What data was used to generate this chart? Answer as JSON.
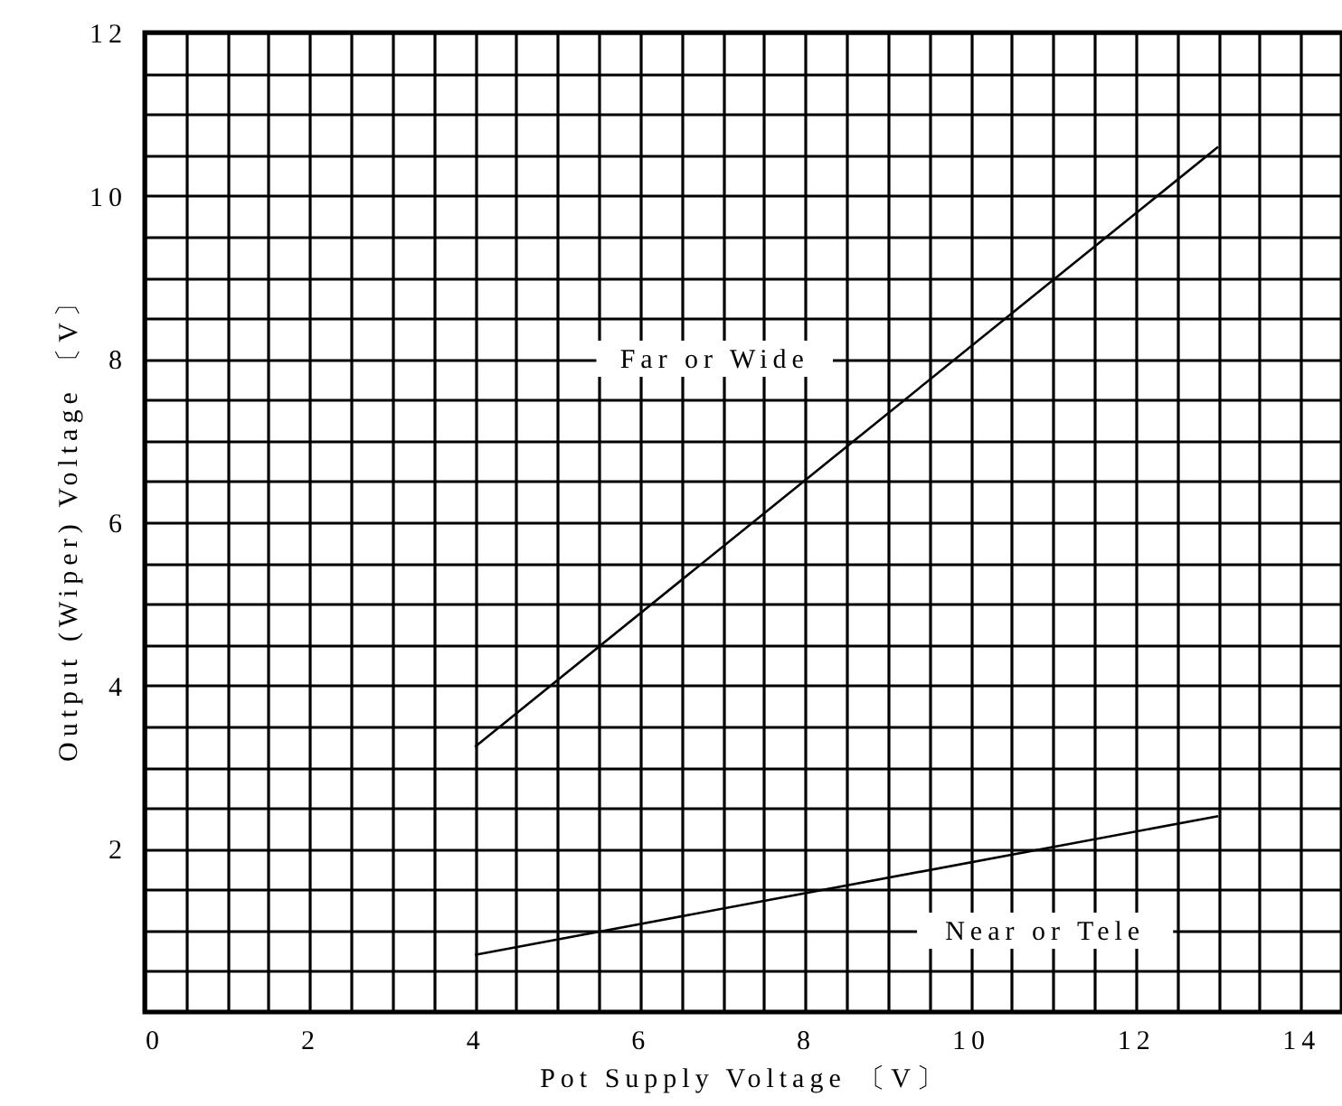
{
  "chart_data": {
    "type": "line",
    "xlabel": "Pot Supply Voltage 〔V〕",
    "ylabel": "Output (Wiper) Voltage 〔V〕",
    "x": [
      4,
      13
    ],
    "series": [
      {
        "color": "#000000",
        "values": [
          3.25,
          10.6
        ]
      },
      {
        "color": "#000000",
        "values": [
          0.7,
          2.4
        ]
      }
    ],
    "annotations": [
      "Far or Wide",
      "Near or Tele"
    ],
    "xlim": [
      0,
      14.5
    ],
    "ylim": [
      0,
      12
    ],
    "xticks": [
      0,
      {
        "value": 0.5,
        "label": null
      },
      {
        "value": 1,
        "label": null
      },
      {
        "value": 1.5,
        "label": null
      },
      2,
      {
        "value": 2.5,
        "label": null
      },
      {
        "value": 3,
        "label": null
      },
      {
        "value": 3.5,
        "label": null
      },
      4,
      {
        "value": 4.5,
        "label": null
      },
      {
        "value": 5,
        "label": null
      },
      {
        "value": 5.5,
        "label": null
      },
      6,
      {
        "value": 6.5,
        "label": null
      },
      {
        "value": 7,
        "label": null
      },
      {
        "value": 7.5,
        "label": null
      },
      8,
      {
        "value": 8.5,
        "label": null
      },
      {
        "value": 9,
        "label": null
      },
      {
        "value": 9.5,
        "label": null
      },
      10,
      {
        "value": 10.5,
        "label": null
      },
      {
        "value": 11,
        "label": null
      },
      {
        "value": 11.5,
        "label": null
      },
      12,
      {
        "value": 12.5,
        "label": null
      },
      {
        "value": 13,
        "label": null
      },
      {
        "value": 13.5,
        "label": null
      },
      14
    ],
    "yticks": [
      {
        "value": 0.5,
        "label": null
      },
      {
        "value": 1,
        "label": null
      },
      {
        "value": 1.5,
        "label": null
      },
      2,
      {
        "value": 2.5,
        "label": null
      },
      {
        "value": 3,
        "label": null
      },
      {
        "value": 3.5,
        "label": null
      },
      4,
      {
        "value": 4.5,
        "label": null
      },
      {
        "value": 5,
        "label": null
      },
      {
        "value": 5.5,
        "label": null
      },
      6,
      {
        "value": 6.5,
        "label": null
      },
      {
        "value": 7,
        "label": null
      },
      {
        "value": 7.5,
        "label": null
      },
      8,
      {
        "value": 8.5,
        "label": null
      },
      {
        "value": 9,
        "label": null
      },
      {
        "value": 9.5,
        "label": null
      },
      10,
      {
        "value": 10.5,
        "label": null
      },
      {
        "value": 11,
        "label": null
      },
      {
        "value": 11.5,
        "label": null
      },
      12
    ],
    "grid": true,
    "marker": "none",
    "line_style": "solid"
  }
}
